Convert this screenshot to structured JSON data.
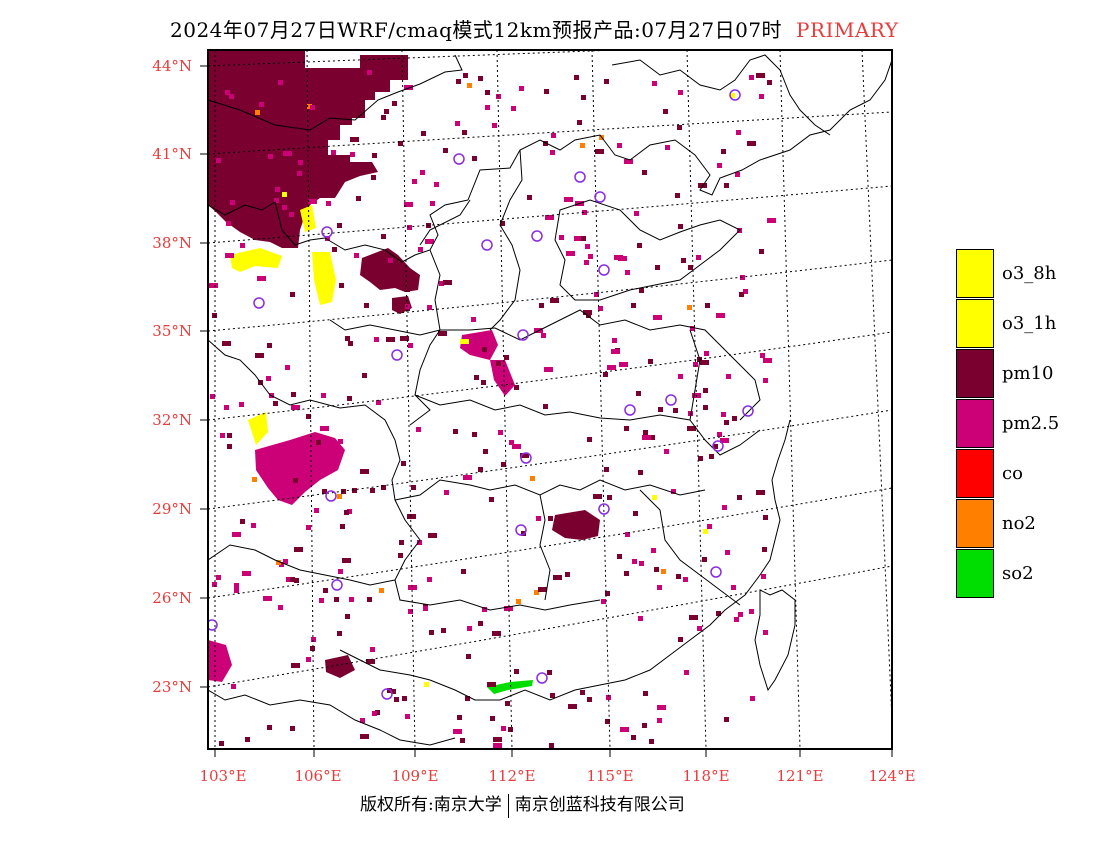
{
  "title": {
    "main": "2024年07月27日WRF/cmaq模式12km预报产品:07月27日07时",
    "tag": "PRIMARY"
  },
  "lat_labels": [
    "44°N",
    "41°N",
    "38°N",
    "35°N",
    "32°N",
    "29°N",
    "26°N",
    "23°N"
  ],
  "lon_labels": [
    "103°E",
    "106°E",
    "109°E",
    "112°E",
    "115°E",
    "118°E",
    "121°E",
    "124°E"
  ],
  "legend": [
    {
      "label": "o3_8h",
      "color": "#ffff00"
    },
    {
      "label": "o3_1h",
      "color": "#ffff00"
    },
    {
      "label": "pm10",
      "color": "#7a0030"
    },
    {
      "label": "pm2.5",
      "color": "#cc0077"
    },
    {
      "label": "co",
      "color": "#ff0000"
    },
    {
      "label": "no2",
      "color": "#ff8000"
    },
    {
      "label": "so2",
      "color": "#00dd00"
    }
  ],
  "footer": {
    "left": "版权所有:南京大学",
    "right": "南京创蓝科技有限公司"
  },
  "colors": {
    "accent": "#e83c3c",
    "pm10": "#7a0030",
    "pm25": "#cc0077",
    "o3": "#ffff00",
    "so2": "#00dd00",
    "no2": "#ff8000",
    "station": "#8a2be2"
  }
}
